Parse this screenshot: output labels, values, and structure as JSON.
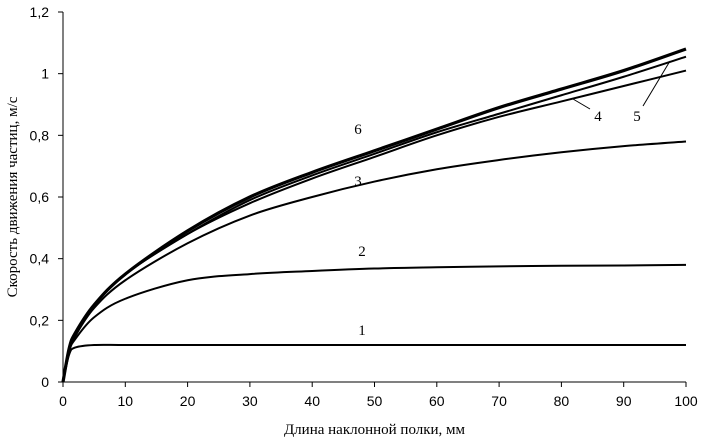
{
  "chart_data": {
    "type": "line",
    "xlabel": "Длина наклонной полки, мм",
    "ylabel": "Скорость движения частиц, м/с",
    "xlim": [
      0,
      100
    ],
    "ylim": [
      0,
      1.2
    ],
    "xticks": [
      "0",
      "10",
      "20",
      "30",
      "40",
      "50",
      "60",
      "70",
      "80",
      "90",
      "100"
    ],
    "yticks": [
      "0",
      "0,2",
      "0,4",
      "0,6",
      "0,8",
      "1",
      "1,2"
    ],
    "grid": false,
    "legend": "none",
    "x": [
      0,
      1,
      2,
      5,
      10,
      20,
      30,
      40,
      50,
      60,
      70,
      80,
      90,
      100
    ],
    "series": [
      {
        "name": "1",
        "values": [
          0,
          0.09,
          0.112,
          0.12,
          0.12,
          0.12,
          0.12,
          0.12,
          0.12,
          0.12,
          0.12,
          0.12,
          0.12,
          0.12
        ]
      },
      {
        "name": "2",
        "values": [
          0,
          0.1,
          0.14,
          0.21,
          0.27,
          0.33,
          0.35,
          0.36,
          0.368,
          0.372,
          0.375,
          0.377,
          0.378,
          0.38
        ]
      },
      {
        "name": "3",
        "values": [
          0,
          0.1,
          0.15,
          0.24,
          0.33,
          0.45,
          0.54,
          0.6,
          0.65,
          0.69,
          0.72,
          0.745,
          0.765,
          0.78
        ]
      },
      {
        "name": "4",
        "values": [
          0,
          0.11,
          0.16,
          0.25,
          0.35,
          0.48,
          0.58,
          0.66,
          0.73,
          0.8,
          0.86,
          0.91,
          0.96,
          1.01
        ]
      },
      {
        "name": "5",
        "values": [
          0,
          0.11,
          0.16,
          0.25,
          0.35,
          0.48,
          0.59,
          0.67,
          0.74,
          0.81,
          0.87,
          0.93,
          0.99,
          1.055
        ]
      },
      {
        "name": "6",
        "values": [
          0,
          0.11,
          0.16,
          0.25,
          0.35,
          0.49,
          0.6,
          0.68,
          0.75,
          0.82,
          0.89,
          0.95,
          1.01,
          1.08
        ]
      }
    ]
  }
}
